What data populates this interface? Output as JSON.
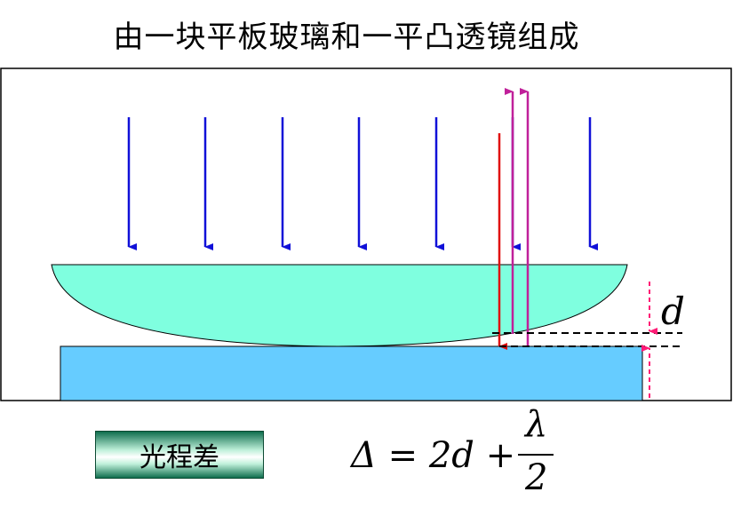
{
  "title": "由一块平板玻璃和一平凸透镜组成",
  "d_label": "d",
  "label_box": "光程差",
  "formula": {
    "lhs": "Δ = 2d +",
    "numerator": "λ",
    "denominator": "2"
  },
  "colors": {
    "incident_ray": "#1010d8",
    "reflected_ray_red": "#e01010",
    "reflected_ray_magenta": "#c0209a",
    "lens_fill": "#7fffdf",
    "plate_fill": "#66ccff",
    "dimension_mark": "#ff1a75"
  }
}
